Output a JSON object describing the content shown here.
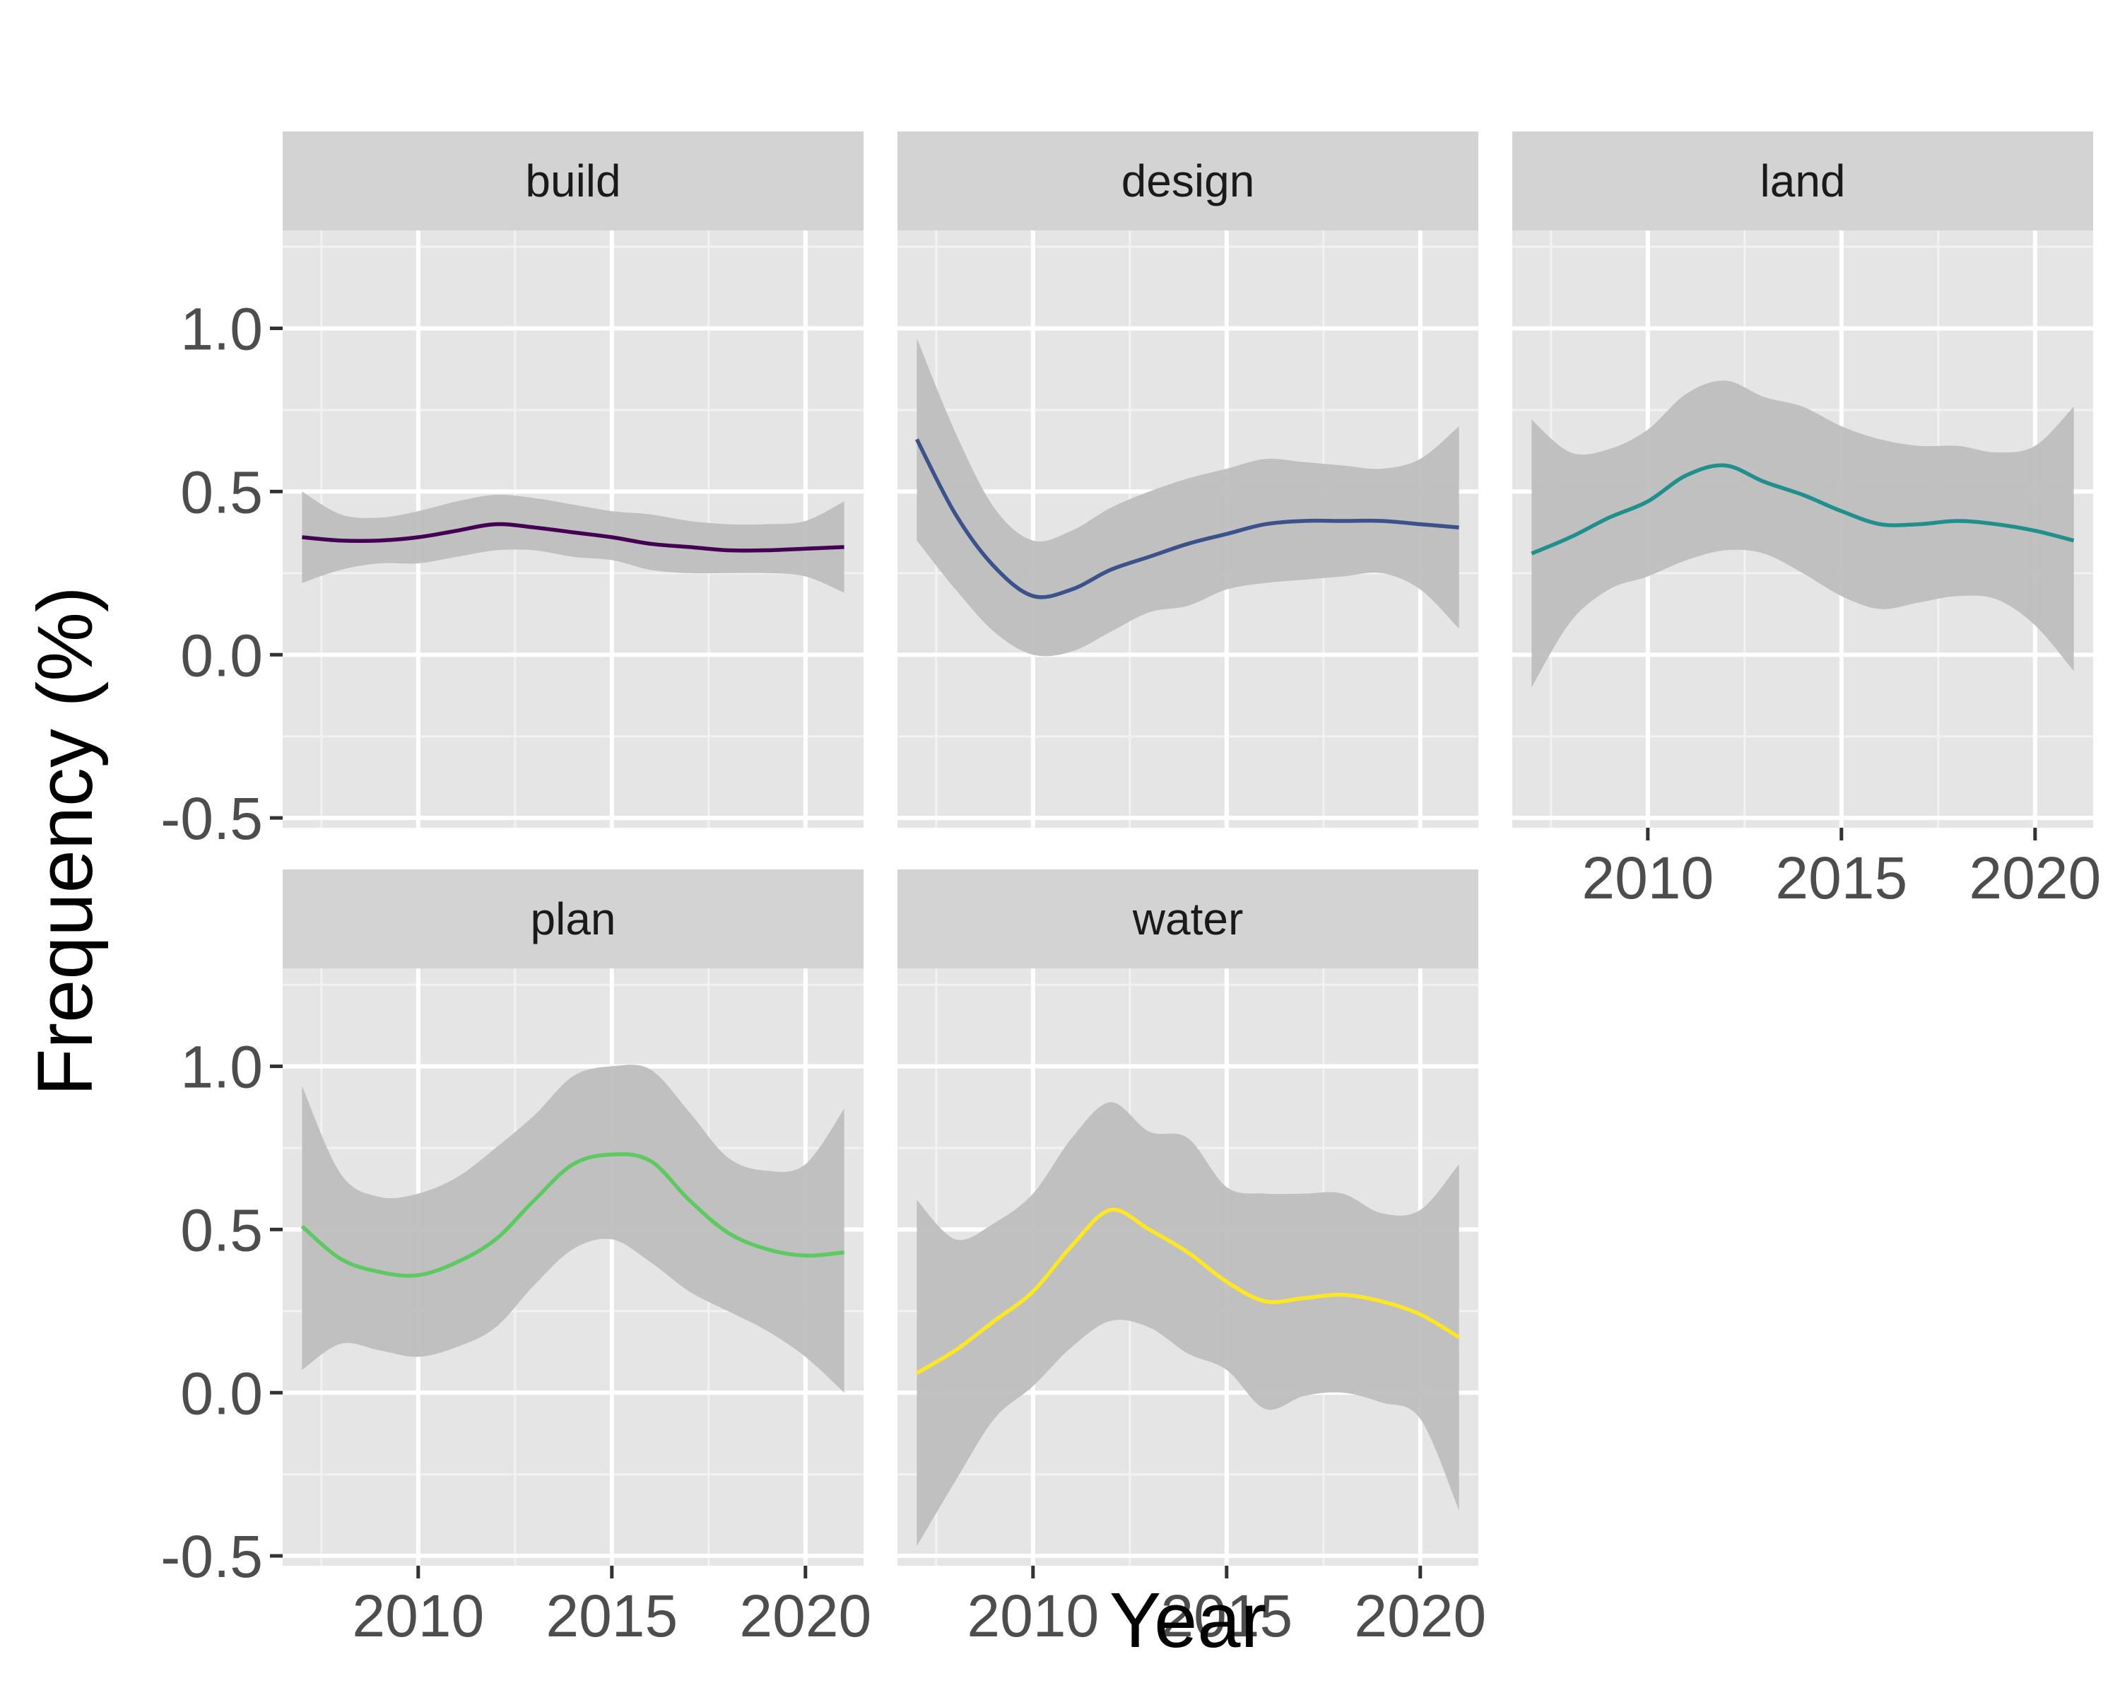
{
  "chart_data": {
    "type": "line",
    "subtype": "faceted smoothed line with confidence ribbon",
    "xlabel": "Year",
    "ylabel": "Frequency (%)",
    "xlim": [
      2006.5,
      2021.5
    ],
    "ylim": [
      -0.53,
      1.0
    ],
    "x_ticks": [
      2010,
      2015,
      2020
    ],
    "x_tick_labels": [
      "2010",
      "2015",
      "2020"
    ],
    "y_ticks": [
      -0.5,
      0.0,
      0.5,
      1.0
    ],
    "y_tick_labels": [
      "-0.5",
      "0.0",
      "0.5",
      "1.0"
    ],
    "grid": true,
    "ribbon_color": "#bebebe",
    "panel_background": "#e5e5e5",
    "strip_background": "#d3d3d3",
    "facets": [
      {
        "name": "build",
        "color": "#440154",
        "x": [
          2007,
          2008,
          2009,
          2010,
          2011,
          2012,
          2013,
          2014,
          2015,
          2016,
          2017,
          2018,
          2019,
          2020,
          2021
        ],
        "y": [
          0.36,
          0.35,
          0.35,
          0.36,
          0.38,
          0.4,
          0.39,
          0.375,
          0.36,
          0.34,
          0.33,
          0.32,
          0.32,
          0.325,
          0.33
        ],
        "lower": [
          0.22,
          0.26,
          0.28,
          0.28,
          0.3,
          0.32,
          0.32,
          0.3,
          0.29,
          0.26,
          0.25,
          0.25,
          0.25,
          0.24,
          0.19
        ],
        "upper": [
          0.5,
          0.43,
          0.42,
          0.44,
          0.47,
          0.49,
          0.48,
          0.46,
          0.44,
          0.43,
          0.41,
          0.4,
          0.4,
          0.41,
          0.47
        ]
      },
      {
        "name": "design",
        "color": "#3b528b",
        "x": [
          2007,
          2008,
          2009,
          2010,
          2011,
          2012,
          2013,
          2014,
          2015,
          2016,
          2017,
          2018,
          2019,
          2020,
          2021
        ],
        "y": [
          0.66,
          0.43,
          0.27,
          0.18,
          0.2,
          0.26,
          0.3,
          0.34,
          0.37,
          0.4,
          0.41,
          0.41,
          0.41,
          0.4,
          0.39
        ],
        "lower": [
          0.35,
          0.2,
          0.07,
          0.0,
          0.01,
          0.07,
          0.13,
          0.15,
          0.2,
          0.22,
          0.23,
          0.24,
          0.25,
          0.2,
          0.08
        ],
        "upper": [
          0.97,
          0.68,
          0.45,
          0.35,
          0.38,
          0.45,
          0.5,
          0.54,
          0.57,
          0.6,
          0.59,
          0.58,
          0.57,
          0.6,
          0.7
        ]
      },
      {
        "name": "land",
        "color": "#21908c",
        "x": [
          2007,
          2008,
          2009,
          2010,
          2011,
          2012,
          2013,
          2014,
          2015,
          2016,
          2017,
          2018,
          2019,
          2020,
          2021
        ],
        "y": [
          0.31,
          0.36,
          0.42,
          0.47,
          0.55,
          0.58,
          0.53,
          0.49,
          0.44,
          0.4,
          0.4,
          0.41,
          0.4,
          0.38,
          0.35
        ],
        "lower": [
          -0.1,
          0.1,
          0.2,
          0.24,
          0.29,
          0.32,
          0.31,
          0.25,
          0.18,
          0.14,
          0.16,
          0.18,
          0.17,
          0.09,
          -0.05
        ],
        "upper": [
          0.72,
          0.62,
          0.63,
          0.69,
          0.8,
          0.84,
          0.79,
          0.76,
          0.7,
          0.66,
          0.64,
          0.64,
          0.62,
          0.64,
          0.76
        ]
      },
      {
        "name": "plan",
        "color": "#5ec962",
        "x": [
          2007,
          2008,
          2009,
          2010,
          2011,
          2012,
          2013,
          2014,
          2015,
          2016,
          2017,
          2018,
          2019,
          2020,
          2021
        ],
        "y": [
          0.51,
          0.41,
          0.37,
          0.36,
          0.4,
          0.47,
          0.59,
          0.7,
          0.73,
          0.71,
          0.59,
          0.49,
          0.44,
          0.42,
          0.43
        ],
        "lower": [
          0.07,
          0.15,
          0.13,
          0.11,
          0.14,
          0.2,
          0.33,
          0.44,
          0.47,
          0.4,
          0.31,
          0.25,
          0.19,
          0.11,
          0.0
        ],
        "upper": [
          0.94,
          0.67,
          0.6,
          0.61,
          0.66,
          0.75,
          0.85,
          0.97,
          1.0,
          0.99,
          0.86,
          0.72,
          0.68,
          0.7,
          0.87
        ]
      },
      {
        "name": "water",
        "color": "#fde725",
        "x": [
          2007,
          2008,
          2009,
          2010,
          2011,
          2012,
          2013,
          2014,
          2015,
          2016,
          2017,
          2018,
          2019,
          2020,
          2021
        ],
        "y": [
          0.06,
          0.13,
          0.22,
          0.31,
          0.45,
          0.56,
          0.5,
          0.43,
          0.34,
          0.28,
          0.29,
          0.3,
          0.28,
          0.24,
          0.17
        ],
        "lower": [
          -0.47,
          -0.27,
          -0.08,
          0.02,
          0.14,
          0.22,
          0.2,
          0.12,
          0.07,
          -0.05,
          -0.01,
          0.0,
          -0.03,
          -0.08,
          -0.36
        ],
        "upper": [
          0.59,
          0.47,
          0.52,
          0.61,
          0.78,
          0.89,
          0.8,
          0.78,
          0.63,
          0.61,
          0.61,
          0.61,
          0.55,
          0.56,
          0.7
        ]
      }
    ]
  }
}
